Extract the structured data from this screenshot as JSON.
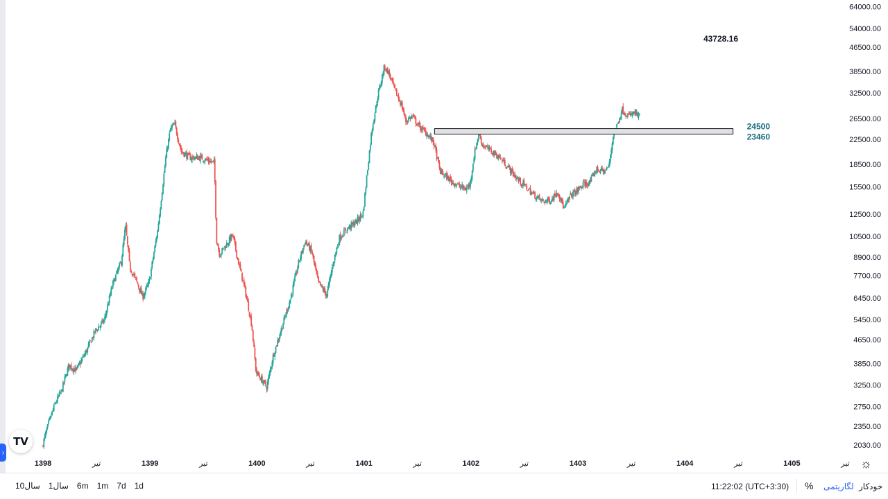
{
  "chart_data": {
    "type": "candlestick",
    "y_scale": "log",
    "ylim": [
      1900,
      66000
    ],
    "y_ticks": [
      "64000.00",
      "54000.00",
      "46500.00",
      "38500.00",
      "32500.00",
      "26500.00",
      "22500.00",
      "18500.00",
      "15500.00",
      "12500.00",
      "10500.00",
      "8900.00",
      "7700.00",
      "6450.00",
      "5450.00",
      "4650.00",
      "3850.00",
      "3250.00",
      "2750.00",
      "2350.00",
      "2030.00"
    ],
    "x_ticks": [
      {
        "label": "1398",
        "year": true
      },
      {
        "label": "تیر",
        "year": false
      },
      {
        "label": "1399",
        "year": true
      },
      {
        "label": "تیر",
        "year": false
      },
      {
        "label": "1400",
        "year": true
      },
      {
        "label": "تیر",
        "year": false
      },
      {
        "label": "1401",
        "year": true
      },
      {
        "label": "تیر",
        "year": false
      },
      {
        "label": "1402",
        "year": true
      },
      {
        "label": "تیر",
        "year": false
      },
      {
        "label": "1403",
        "year": true
      },
      {
        "label": "تیر",
        "year": false
      },
      {
        "label": "1404",
        "year": true
      },
      {
        "label": "تیر",
        "year": false
      },
      {
        "label": "1405",
        "year": true
      },
      {
        "label": "تیر",
        "year": false
      }
    ],
    "price_label": "43728.16",
    "zone": {
      "upper": "24500",
      "lower": "23460"
    },
    "up_color": "#26a69a",
    "down_color": "#ef5350",
    "zone_fill": "#e0e0e0",
    "trend_points": [
      [
        1398.0,
        2000
      ],
      [
        1398.06,
        2400
      ],
      [
        1398.12,
        2800
      ],
      [
        1398.18,
        3100
      ],
      [
        1398.25,
        3800
      ],
      [
        1398.32,
        3650
      ],
      [
        1398.42,
        4300
      ],
      [
        1398.5,
        5000
      ],
      [
        1398.58,
        5400
      ],
      [
        1398.66,
        7200
      ],
      [
        1398.74,
        8600
      ],
      [
        1398.78,
        11400
      ],
      [
        1398.82,
        8200
      ],
      [
        1398.88,
        7400
      ],
      [
        1398.94,
        6500
      ],
      [
        1399.0,
        7300
      ],
      [
        1399.08,
        11000
      ],
      [
        1399.16,
        20000
      ],
      [
        1399.2,
        24500
      ],
      [
        1399.24,
        25300
      ],
      [
        1399.3,
        20500
      ],
      [
        1399.38,
        19500
      ],
      [
        1399.48,
        19500
      ],
      [
        1399.56,
        19000
      ],
      [
        1399.61,
        18700
      ],
      [
        1399.63,
        10200
      ],
      [
        1399.66,
        9100
      ],
      [
        1399.72,
        9800
      ],
      [
        1399.78,
        10600
      ],
      [
        1399.84,
        8400
      ],
      [
        1399.9,
        6800
      ],
      [
        1399.96,
        5200
      ],
      [
        1400.0,
        3600
      ],
      [
        1400.05,
        3400
      ],
      [
        1400.1,
        3200
      ],
      [
        1400.16,
        4100
      ],
      [
        1400.24,
        5100
      ],
      [
        1400.32,
        6400
      ],
      [
        1400.4,
        8600
      ],
      [
        1400.46,
        10100
      ],
      [
        1400.52,
        9300
      ],
      [
        1400.58,
        7300
      ],
      [
        1400.66,
        6600
      ],
      [
        1400.72,
        8500
      ],
      [
        1400.78,
        10400
      ],
      [
        1400.86,
        11200
      ],
      [
        1400.94,
        11800
      ],
      [
        1401.0,
        12600
      ],
      [
        1401.04,
        17500
      ],
      [
        1401.08,
        24000
      ],
      [
        1401.14,
        32000
      ],
      [
        1401.2,
        40000
      ],
      [
        1401.24,
        38000
      ],
      [
        1401.3,
        33000
      ],
      [
        1401.36,
        29500
      ],
      [
        1401.4,
        26000
      ],
      [
        1401.46,
        27000
      ],
      [
        1401.52,
        25000
      ],
      [
        1401.6,
        23500
      ],
      [
        1401.66,
        22000
      ],
      [
        1401.72,
        17500
      ],
      [
        1401.8,
        16500
      ],
      [
        1401.88,
        15700
      ],
      [
        1401.96,
        15200
      ],
      [
        1402.0,
        15800
      ],
      [
        1402.04,
        20000
      ],
      [
        1402.08,
        23500
      ],
      [
        1402.12,
        21500
      ],
      [
        1402.2,
        20500
      ],
      [
        1402.28,
        19500
      ],
      [
        1402.36,
        18000
      ],
      [
        1402.44,
        16500
      ],
      [
        1402.52,
        15500
      ],
      [
        1402.6,
        14500
      ],
      [
        1402.68,
        13800
      ],
      [
        1402.76,
        14000
      ],
      [
        1402.82,
        15000
      ],
      [
        1402.88,
        13000
      ],
      [
        1402.94,
        14500
      ],
      [
        1403.0,
        15000
      ],
      [
        1403.06,
        15800
      ],
      [
        1403.12,
        16000
      ],
      [
        1403.18,
        17800
      ],
      [
        1403.26,
        17500
      ],
      [
        1403.3,
        18300
      ],
      [
        1403.34,
        23500
      ],
      [
        1403.38,
        25500
      ],
      [
        1403.42,
        28500
      ],
      [
        1403.48,
        27000
      ],
      [
        1403.54,
        27800
      ],
      [
        1403.58,
        26800
      ]
    ]
  },
  "toolbar": {
    "ranges": [
      "1d",
      "7d",
      "1m",
      "6m",
      "1سال",
      "10سال"
    ],
    "time": "11:22:02 (UTC+3:30)",
    "percent": "%",
    "log": "لگاریتمی",
    "auto": "خودکار"
  },
  "logo_text": "TV"
}
